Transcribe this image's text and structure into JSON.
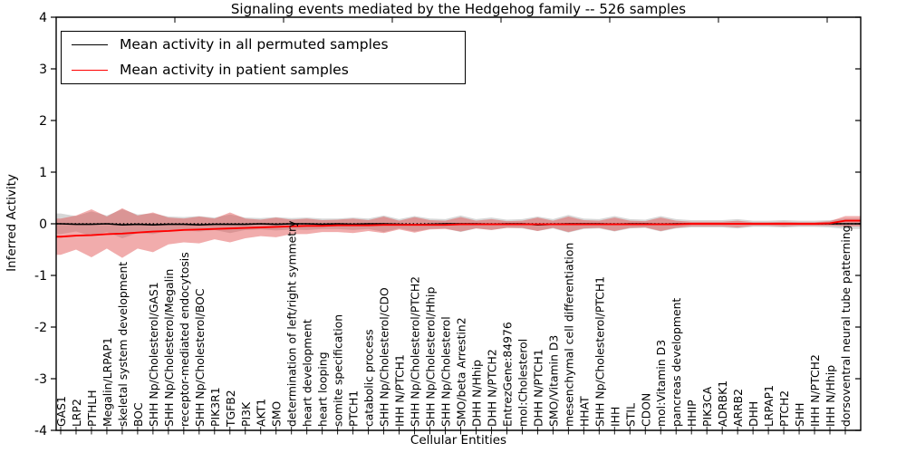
{
  "chart_data": {
    "type": "line",
    "title": "Signaling events mediated by the Hedgehog family -- 526 samples",
    "xlabel": "Cellular Entities",
    "ylabel": "Inferred Activity",
    "ylim": [
      -4,
      4
    ],
    "yticks": [
      4,
      3,
      2,
      1,
      0,
      -1,
      -2,
      -3,
      -4
    ],
    "grid": false,
    "legend_position": "upper left",
    "zero_reference_line": {
      "style": "dotted",
      "color": "#000000",
      "y": 0
    },
    "categories": [
      "GAS1",
      "LRP2",
      "PTHLH",
      "Megalin/LRPAP1",
      "skeletal system development",
      "BOC",
      "SHH Np/Cholesterol/GAS1",
      "SHH Np/Cholesterol/Megalin",
      "receptor-mediated endocytosis",
      "SHH Np/Cholesterol/BOC",
      "PIK3R1",
      "TGFB2",
      "PI3K",
      "AKT1",
      "SMO",
      "determination of left/right symmetry",
      "heart development",
      "heart looping",
      "somite specification",
      "PTCH1",
      "catabolic process",
      "SHH Np/Cholesterol/CDO",
      "IHH N/PTCH1",
      "SHH Np/Cholesterol/PTCH2",
      "SHH Np/Cholesterol/Hhip",
      "SHH Np/Cholesterol",
      "SMO/beta Arrestin2",
      "DHH N/Hhip",
      "DHH N/PTCH2",
      "EntrezGene:84976",
      "mol:Cholesterol",
      "DHH N/PTCH1",
      "SMO/Vitamin D3",
      "mesenchymal cell differentiation",
      "HHAT",
      "SHH Np/Cholesterol/PTCH1",
      "IHH",
      "STIL",
      "CDON",
      "mol:Vitamin D3",
      "pancreas development",
      "HHIP",
      "PIK3CA",
      "ADRBK1",
      "ARRB2",
      "DHH",
      "LRPAP1",
      "PTCH2",
      "SHH",
      "IHH N/PTCH2",
      "IHH N/Hhip",
      "dorsoventral neural tube patterning"
    ],
    "series": [
      {
        "name": "Mean activity in all permuted samples",
        "color": "#000000",
        "values": [
          0,
          -0.01,
          -0.01,
          0,
          -0.02,
          -0.01,
          -0.02,
          -0.01,
          -0.01,
          -0.02,
          -0.01,
          -0.01,
          -0.01,
          0,
          -0.01,
          0,
          0,
          -0.01,
          0,
          -0.01,
          0,
          0,
          -0.01,
          -0.02,
          -0.01,
          0,
          0,
          0,
          -0.01,
          0,
          0,
          -0.02,
          -0.01,
          0,
          0,
          0,
          -0.01,
          0,
          0,
          -0.01,
          0,
          0,
          0,
          0,
          0,
          0,
          0,
          0,
          0,
          0,
          0,
          0
        ]
      },
      {
        "name": "Mean activity in patient samples",
        "color": "#ff0000",
        "values": [
          -0.25,
          -0.23,
          -0.22,
          -0.2,
          -0.19,
          -0.17,
          -0.15,
          -0.14,
          -0.12,
          -0.11,
          -0.1,
          -0.09,
          -0.08,
          -0.07,
          -0.06,
          -0.05,
          -0.04,
          -0.04,
          -0.03,
          -0.03,
          -0.03,
          -0.02,
          -0.02,
          -0.02,
          -0.02,
          -0.02,
          -0.01,
          -0.01,
          -0.01,
          -0.01,
          -0.01,
          -0.01,
          -0.01,
          -0.01,
          -0.01,
          -0.01,
          -0.01,
          -0.01,
          -0.01,
          -0.01,
          -0.01,
          0,
          0,
          0,
          0,
          0,
          0,
          0,
          0,
          0,
          0.01,
          0.06
        ]
      }
    ],
    "bands": [
      {
        "name": "permuted-samples-range",
        "color": "#c8c8c8",
        "opacity": 0.75,
        "upper": [
          0.2,
          0.15,
          0.24,
          0.16,
          0.28,
          0.18,
          0.2,
          0.14,
          0.13,
          0.15,
          0.12,
          0.18,
          0.12,
          0.11,
          0.13,
          0.11,
          0.12,
          0.1,
          0.1,
          0.12,
          0.1,
          0.16,
          0.09,
          0.15,
          0.1,
          0.09,
          0.16,
          0.09,
          0.12,
          0.08,
          0.09,
          0.14,
          0.09,
          0.17,
          0.1,
          0.09,
          0.15,
          0.09,
          0.08,
          0.15,
          0.09,
          0.07,
          0.07,
          0.07,
          0.09,
          0.06,
          0.06,
          0.07,
          0.06,
          0.06,
          0.07,
          0.1
        ],
        "lower": [
          -0.2,
          -0.15,
          -0.24,
          -0.16,
          -0.28,
          -0.18,
          -0.2,
          -0.14,
          -0.13,
          -0.15,
          -0.12,
          -0.18,
          -0.12,
          -0.11,
          -0.13,
          -0.11,
          -0.12,
          -0.1,
          -0.1,
          -0.12,
          -0.1,
          -0.16,
          -0.09,
          -0.15,
          -0.1,
          -0.09,
          -0.16,
          -0.09,
          -0.12,
          -0.08,
          -0.09,
          -0.14,
          -0.09,
          -0.17,
          -0.1,
          -0.09,
          -0.15,
          -0.09,
          -0.08,
          -0.15,
          -0.09,
          -0.07,
          -0.07,
          -0.07,
          -0.09,
          -0.06,
          -0.06,
          -0.07,
          -0.06,
          -0.06,
          -0.07,
          -0.1
        ]
      },
      {
        "name": "patient-samples-range",
        "color": "#e04848",
        "opacity": 0.45,
        "upper": [
          0.1,
          0.16,
          0.28,
          0.14,
          0.3,
          0.16,
          0.22,
          0.12,
          0.1,
          0.14,
          0.1,
          0.22,
          0.1,
          0.08,
          0.12,
          0.08,
          0.1,
          0.07,
          0.08,
          0.1,
          0.07,
          0.14,
          0.06,
          0.13,
          0.07,
          0.06,
          0.13,
          0.06,
          0.09,
          0.05,
          0.06,
          0.12,
          0.06,
          0.14,
          0.07,
          0.06,
          0.12,
          0.06,
          0.05,
          0.12,
          0.06,
          0.04,
          0.04,
          0.04,
          0.06,
          0.03,
          0.03,
          0.04,
          0.03,
          0.03,
          0.05,
          0.15
        ],
        "lower": [
          -0.6,
          -0.5,
          -0.65,
          -0.48,
          -0.66,
          -0.48,
          -0.55,
          -0.4,
          -0.36,
          -0.38,
          -0.3,
          -0.36,
          -0.28,
          -0.24,
          -0.26,
          -0.2,
          -0.2,
          -0.16,
          -0.16,
          -0.18,
          -0.14,
          -0.18,
          -0.11,
          -0.17,
          -0.11,
          -0.1,
          -0.15,
          -0.09,
          -0.12,
          -0.08,
          -0.08,
          -0.14,
          -0.08,
          -0.16,
          -0.09,
          -0.08,
          -0.14,
          -0.08,
          -0.07,
          -0.14,
          -0.08,
          -0.05,
          -0.05,
          -0.05,
          -0.07,
          -0.04,
          -0.04,
          -0.05,
          -0.04,
          -0.04,
          -0.04,
          -0.05
        ]
      }
    ]
  }
}
